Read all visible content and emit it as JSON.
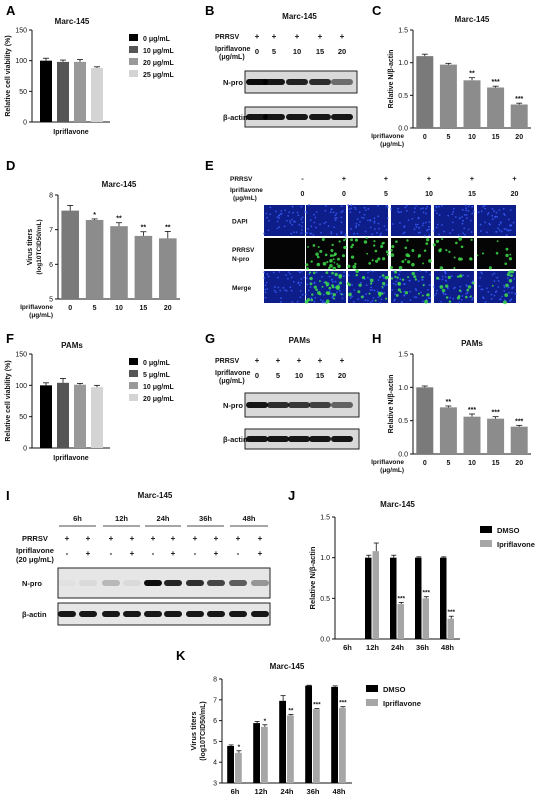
{
  "panels": {
    "A": {
      "letter": "A",
      "title": "Marc-145",
      "ylabel": "Relative cell viability (%)",
      "xlabel": "Ipriflavone",
      "legend": [
        "0 μg/mL",
        "10 μg/mL",
        "20 μg/mL",
        "25 μg/mL"
      ]
    },
    "B": {
      "letter": "B",
      "title": "Marc-145",
      "prrsv": "PRRSV",
      "ipri": "Ipriflavone",
      "unit": "(μg/mL)",
      "doses": [
        "0",
        "5",
        "10",
        "15",
        "20"
      ],
      "prrsv_signs": [
        "+",
        "+",
        "+",
        "+",
        "+"
      ],
      "bands": [
        "N-pro",
        "β-actin"
      ]
    },
    "C": {
      "letter": "C",
      "title": "Marc-145",
      "ylabel": "Relative N/β-actin",
      "xlabel": "Ipriflavone",
      "xunit": "(μg/mL)"
    },
    "D": {
      "letter": "D",
      "title": "Marc-145",
      "ylabel": "Virus titers",
      "ylabel2": "(log10TCID50/mL)",
      "xlabel": "Ipriflavone",
      "xunit": "(μg/mL)"
    },
    "E": {
      "letter": "E",
      "prrsv": "PRRSV",
      "ipri": "Ipriflavone",
      "unit": "(μg/mL)",
      "signs": [
        "-",
        "+",
        "+",
        "+",
        "+",
        "+"
      ],
      "doses": [
        "0",
        "0",
        "5",
        "10",
        "15",
        "20"
      ],
      "rows": [
        "DAPI",
        "PRRSV",
        "N-pro",
        "Merge"
      ]
    },
    "F": {
      "letter": "F",
      "title": "PAMs",
      "ylabel": "Relative cell viability (%)",
      "xlabel": "Ipriflavone",
      "legend": [
        "0 μg/mL",
        "5 μg/mL",
        "10 μg/mL",
        "20 μg/mL"
      ]
    },
    "G": {
      "letter": "G",
      "title": "PAMs",
      "prrsv": "PRRSV",
      "ipri": "Ipriflavone",
      "unit": "(μg/mL)",
      "doses": [
        "0",
        "5",
        "10",
        "15",
        "20"
      ],
      "prrsv_signs": [
        "+",
        "+",
        "+",
        "+",
        "+"
      ],
      "bands": [
        "N-pro",
        "β-actin"
      ]
    },
    "H": {
      "letter": "H",
      "title": "PAMs",
      "ylabel": "Relative N/β-actin",
      "xlabel": "Ipriflavone",
      "xunit": "(μg/mL)"
    },
    "I": {
      "letter": "I",
      "title": "Marc-145",
      "times": [
        "6h",
        "12h",
        "24h",
        "36h",
        "48h"
      ],
      "prrsv": "PRRSV",
      "ipri": "Ipriflavone",
      "unit": "(20 μg/mL)",
      "prrsv_signs": [
        "+",
        "+",
        "+",
        "+",
        "+",
        "+",
        "+",
        "+",
        "+",
        "+"
      ],
      "ipri_signs": [
        "-",
        "+",
        "-",
        "+",
        "-",
        "+",
        "-",
        "+",
        "-",
        "+"
      ],
      "bands": [
        "N-pro",
        "β-actin"
      ]
    },
    "J": {
      "letter": "J",
      "title": "Marc-145",
      "ylabel": "Relative N/β-actin",
      "legend": [
        "DMSO",
        "Ipriflavone"
      ]
    },
    "K": {
      "letter": "K",
      "title": "Marc-145",
      "ylabel": "Virus titers",
      "ylabel2": "(log10TCID50/mL)",
      "legend": [
        "DMSO",
        "Ipriflavone"
      ]
    }
  },
  "chart_data": [
    {
      "id": "A",
      "type": "bar",
      "title": "Marc-145",
      "xlabel": "Ipriflavone",
      "ylabel": "Relative cell viability (%)",
      "ylim": [
        0,
        150
      ],
      "yticks": [
        0,
        50,
        100,
        150
      ],
      "series": [
        {
          "name": "0 μg/mL",
          "values": [
            100
          ],
          "err": [
            4
          ]
        },
        {
          "name": "10 μg/mL",
          "values": [
            98
          ],
          "err": [
            3
          ]
        },
        {
          "name": "20 μg/mL",
          "values": [
            98
          ],
          "err": [
            4
          ]
        },
        {
          "name": "25 μg/mL",
          "values": [
            88
          ],
          "err": [
            2
          ]
        }
      ],
      "colors": [
        "#000000",
        "#555555",
        "#999999",
        "#d4d4d4"
      ]
    },
    {
      "id": "C",
      "type": "bar",
      "title": "Marc-145",
      "ylabel": "Relative N/β-actin",
      "xlabel": "Ipriflavone",
      "xunit": "(μg/mL)",
      "categories": [
        "0",
        "5",
        "10",
        "15",
        "20"
      ],
      "ylim": [
        0,
        1.5
      ],
      "yticks": [
        "0.0",
        "0.5",
        "1.0",
        "1.5"
      ],
      "values": [
        1.1,
        0.97,
        0.73,
        0.62,
        0.36
      ],
      "err": [
        0.03,
        0.02,
        0.04,
        0.02,
        0.02
      ],
      "significance": [
        "",
        "",
        "**",
        "***",
        "***"
      ]
    },
    {
      "id": "D",
      "type": "bar",
      "title": "Marc-145",
      "ylabel": "Virus titers",
      "xlabel": "Ipriflavone",
      "xunit": "(μg/mL)",
      "categories": [
        "0",
        "5",
        "10",
        "15",
        "20"
      ],
      "ylim": [
        5,
        8
      ],
      "yticks": [
        "5",
        "6",
        "7",
        "8"
      ],
      "values": [
        7.55,
        7.28,
        7.1,
        6.82,
        6.75
      ],
      "err": [
        0.15,
        0.03,
        0.1,
        0.12,
        0.2
      ],
      "significance": [
        "",
        "*",
        "**",
        "**",
        "**"
      ]
    },
    {
      "id": "F",
      "type": "bar",
      "title": "PAMs",
      "xlabel": "Ipriflavone",
      "ylabel": "Relative cell viability (%)",
      "ylim": [
        0,
        150
      ],
      "yticks": [
        0,
        50,
        100,
        150
      ],
      "series": [
        {
          "name": "0 μg/mL",
          "values": [
            100
          ],
          "err": [
            4
          ]
        },
        {
          "name": "5 μg/mL",
          "values": [
            104
          ],
          "err": [
            7
          ]
        },
        {
          "name": "10 μg/mL",
          "values": [
            101
          ],
          "err": [
            2
          ]
        },
        {
          "name": "20 μg/mL",
          "values": [
            97
          ],
          "err": [
            3
          ]
        }
      ],
      "colors": [
        "#000000",
        "#555555",
        "#999999",
        "#d4d4d4"
      ]
    },
    {
      "id": "H",
      "type": "bar",
      "title": "PAMs",
      "ylabel": "Relative N/β-actin",
      "xlabel": "Ipriflavone",
      "xunit": "(μg/mL)",
      "categories": [
        "0",
        "5",
        "10",
        "15",
        "20"
      ],
      "ylim": [
        0,
        1.5
      ],
      "yticks": [
        "0.0",
        "0.5",
        "1.0",
        "1.5"
      ],
      "values": [
        1.0,
        0.7,
        0.56,
        0.53,
        0.41
      ],
      "err": [
        0.02,
        0.02,
        0.04,
        0.03,
        0.02
      ],
      "significance": [
        "",
        "**",
        "***",
        "***",
        "***"
      ]
    },
    {
      "id": "J",
      "type": "bar",
      "title": "Marc-145",
      "ylabel": "Relative N/β-actin",
      "categories": [
        "6h",
        "12h",
        "24h",
        "36h",
        "48h"
      ],
      "ylim": [
        0,
        1.5
      ],
      "yticks": [
        "0.0",
        "0.5",
        "1.0",
        "1.5"
      ],
      "series": [
        {
          "name": "DMSO",
          "values": [
            0,
            1.0,
            1.0,
            1.0,
            1.0
          ],
          "err": [
            0,
            0.03,
            0.03,
            0.01,
            0.01
          ]
        },
        {
          "name": "Ipriflavone",
          "values": [
            0,
            1.08,
            0.43,
            0.5,
            0.25
          ],
          "err": [
            0,
            0.1,
            0.02,
            0.02,
            0.03
          ]
        }
      ],
      "significance": [
        "",
        "",
        "***",
        "***",
        "***"
      ]
    },
    {
      "id": "K",
      "type": "bar",
      "title": "Marc-145",
      "ylabel": "Virus titers",
      "categories": [
        "6h",
        "12h",
        "24h",
        "36h",
        "48h"
      ],
      "ylim": [
        3,
        8
      ],
      "yticks": [
        "3",
        "4",
        "5",
        "6",
        "7",
        "8"
      ],
      "series": [
        {
          "name": "DMSO",
          "values": [
            4.78,
            5.88,
            6.95,
            7.68,
            7.62
          ],
          "err": [
            0.05,
            0.08,
            0.25,
            0.02,
            0.05
          ]
        },
        {
          "name": "Ipriflavone",
          "values": [
            4.45,
            5.7,
            6.25,
            6.55,
            6.62
          ],
          "err": [
            0.1,
            0.1,
            0.05,
            0.03,
            0.05
          ]
        }
      ],
      "significance": [
        "*",
        "*",
        "**",
        "***",
        "***"
      ]
    }
  ]
}
